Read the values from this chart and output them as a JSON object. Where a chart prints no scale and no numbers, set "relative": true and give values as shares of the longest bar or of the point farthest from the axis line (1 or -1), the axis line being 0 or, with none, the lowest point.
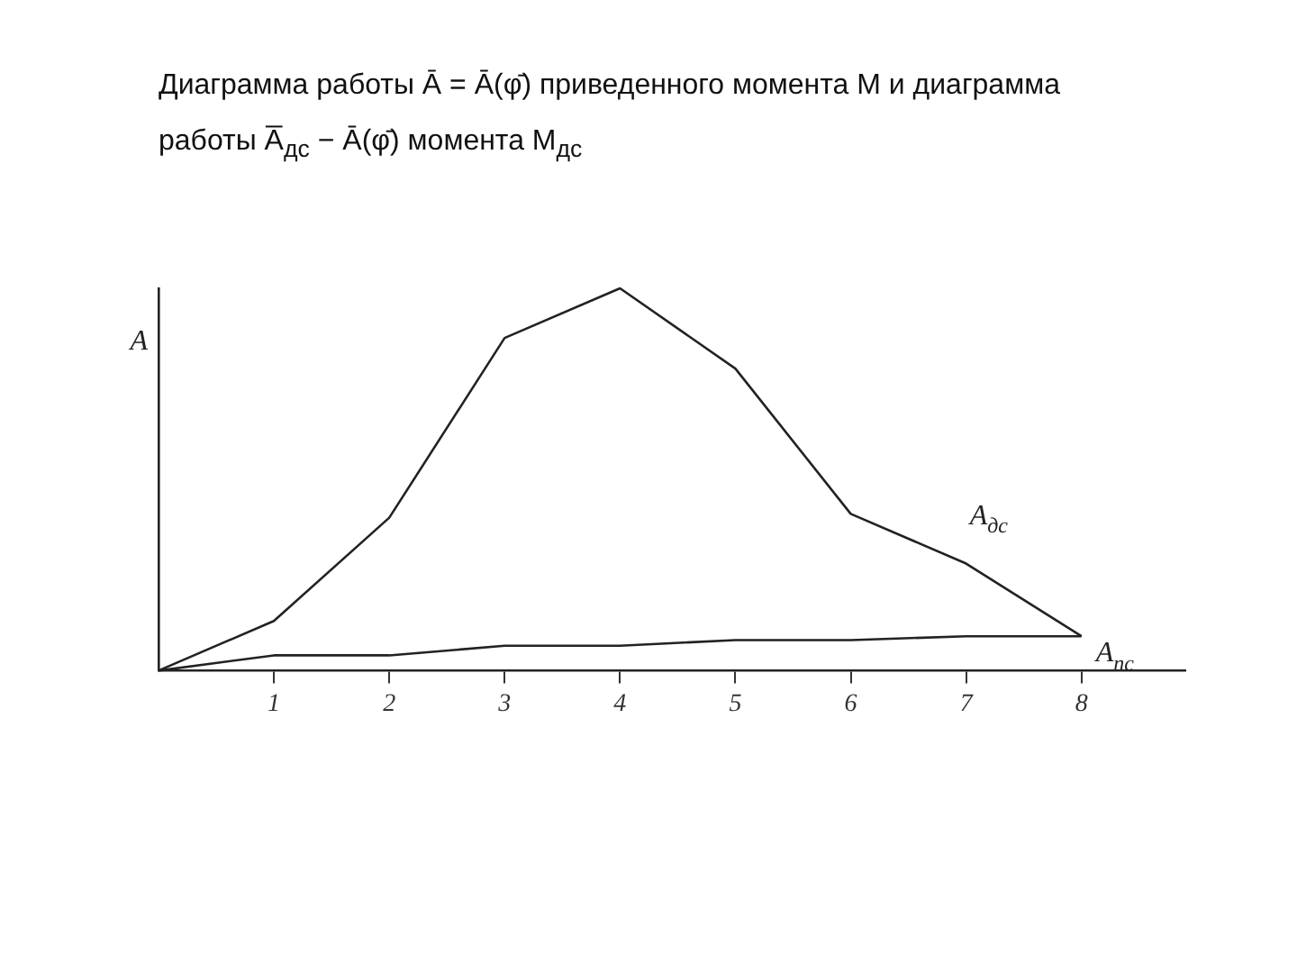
{
  "chart_data": {
    "type": "line",
    "title": "Диаграмма работы Ā = Ā(φ̄) приведенного момента М и диаграмма работы A̅$_{дс}$ − Ā(φ̄) момента М$_{дс}$",
    "ylabel": "A",
    "x": [
      0,
      1,
      2,
      3,
      4,
      5,
      6,
      7,
      8
    ],
    "xlim": [
      0,
      8.9
    ],
    "xticks": [
      1,
      2,
      3,
      4,
      5,
      6,
      7,
      8
    ],
    "relative": true,
    "tick_labels": "x",
    "grid": false,
    "legend": false,
    "marker": "none",
    "series": [
      {
        "name": "A$_{дс}$",
        "color": "#222222",
        "values": [
          0,
          0.13,
          0.4,
          0.87,
          1,
          0.79,
          0.41,
          0.28,
          0.09
        ]
      },
      {
        "name": "A$_{пс}$",
        "color": "#222222",
        "values": [
          0,
          0.04,
          0.04,
          0.065,
          0.065,
          0.08,
          0.08,
          0.09,
          0.09
        ]
      }
    ]
  }
}
